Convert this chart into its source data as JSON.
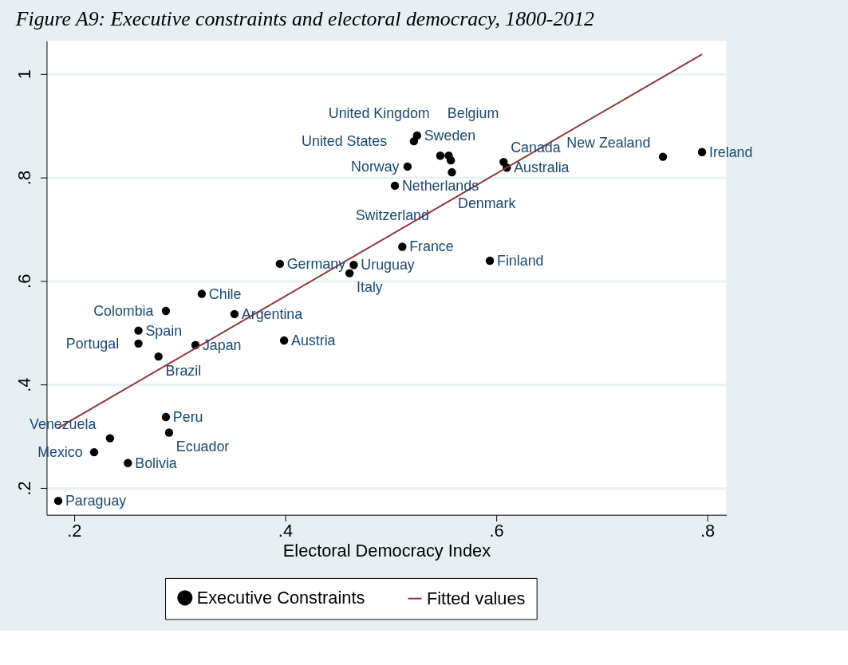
{
  "chart_data": {
    "type": "scatter",
    "title": "Figure A9: Executive constraints and electoral democracy, 1800-2012",
    "xlabel": "Electoral Democracy Index",
    "xlim": [
      0.174,
      0.818
    ],
    "ylim": [
      0.148,
      1.064
    ],
    "xticks": [
      {
        "value": 0.2,
        "label": ".2"
      },
      {
        "value": 0.4,
        "label": ".4"
      },
      {
        "value": 0.6,
        "label": ".6"
      },
      {
        "value": 0.8,
        "label": ".8"
      }
    ],
    "yticks": [
      {
        "value": 0.2,
        "label": ".2"
      },
      {
        "value": 0.4,
        "label": ".4"
      },
      {
        "value": 0.6,
        "label": ".6"
      },
      {
        "value": 0.8,
        "label": ".8"
      },
      {
        "value": 1,
        "label": "1"
      }
    ],
    "grid": "y",
    "legend": "bottom",
    "series": [
      {
        "name": "Executive Constraints",
        "marker": "circle",
        "color": "#000000",
        "x": [
          0.185,
          0.219,
          0.234,
          0.251,
          0.287,
          0.29,
          0.261,
          0.261,
          0.28,
          0.315,
          0.287,
          0.321,
          0.352,
          0.399,
          0.395,
          0.461,
          0.465,
          0.511,
          0.594,
          0.504,
          0.516,
          0.522,
          0.525,
          0.547,
          0.555,
          0.557,
          0.558,
          0.607,
          0.61,
          0.758,
          0.795
        ],
        "values": [
          0.175,
          0.269,
          0.296,
          0.248,
          0.337,
          0.307,
          0.504,
          0.479,
          0.454,
          0.476,
          0.542,
          0.575,
          0.536,
          0.485,
          0.633,
          0.615,
          0.631,
          0.666,
          0.639,
          0.784,
          0.821,
          0.87,
          0.881,
          0.842,
          0.842,
          0.833,
          0.81,
          0.83,
          0.819,
          0.84,
          0.849
        ]
      },
      {
        "name": "Fitted values",
        "type": "line",
        "marker": "none",
        "line_style": "solid",
        "color": "#90353b",
        "x": [
          0.185,
          0.795
        ],
        "values": [
          0.316,
          1.038
        ]
      }
    ],
    "annotations": [
      {
        "text": "Paraguay",
        "x": 0.185,
        "y": 0.175
      },
      {
        "text": "Mexico",
        "x": 0.219,
        "y": 0.269
      },
      {
        "text": "Venezuela",
        "x": 0.234,
        "y": 0.296
      },
      {
        "text": "Bolivia",
        "x": 0.251,
        "y": 0.248
      },
      {
        "text": "Peru",
        "x": 0.287,
        "y": 0.337
      },
      {
        "text": "Ecuador",
        "x": 0.29,
        "y": 0.307
      },
      {
        "text": "Spain",
        "x": 0.261,
        "y": 0.504
      },
      {
        "text": "Portugal",
        "x": 0.261,
        "y": 0.479
      },
      {
        "text": "Brazil",
        "x": 0.28,
        "y": 0.454
      },
      {
        "text": "Japan",
        "x": 0.315,
        "y": 0.476
      },
      {
        "text": "Colombia",
        "x": 0.287,
        "y": 0.542
      },
      {
        "text": "Chile",
        "x": 0.321,
        "y": 0.575
      },
      {
        "text": "Argentina",
        "x": 0.352,
        "y": 0.536
      },
      {
        "text": "Austria",
        "x": 0.399,
        "y": 0.485
      },
      {
        "text": "Germany",
        "x": 0.395,
        "y": 0.633
      },
      {
        "text": "Italy",
        "x": 0.461,
        "y": 0.615
      },
      {
        "text": "Uruguay",
        "x": 0.465,
        "y": 0.631
      },
      {
        "text": "France",
        "x": 0.511,
        "y": 0.666
      },
      {
        "text": "Finland",
        "x": 0.594,
        "y": 0.639
      },
      {
        "text": "Netherlands",
        "x": 0.504,
        "y": 0.784
      },
      {
        "text": "Norway",
        "x": 0.516,
        "y": 0.821
      },
      {
        "text": "United States",
        "x": 0.522,
        "y": 0.87
      },
      {
        "text": "Sweden",
        "x": 0.525,
        "y": 0.881
      },
      {
        "text": "Belgium",
        "x": 0.547,
        "y": 0.842
      },
      {
        "text": "United Kingdom",
        "x": 0.555,
        "y": 0.842
      },
      {
        "text": "Denmark",
        "x": 0.557,
        "y": 0.833
      },
      {
        "text": "Switzerland",
        "x": 0.558,
        "y": 0.81
      },
      {
        "text": "Canada",
        "x": 0.607,
        "y": 0.83
      },
      {
        "text": "Australia",
        "x": 0.61,
        "y": 0.819
      },
      {
        "text": "New Zealand",
        "x": 0.758,
        "y": 0.84
      },
      {
        "text": "Ireland",
        "x": 0.795,
        "y": 0.849
      }
    ]
  }
}
